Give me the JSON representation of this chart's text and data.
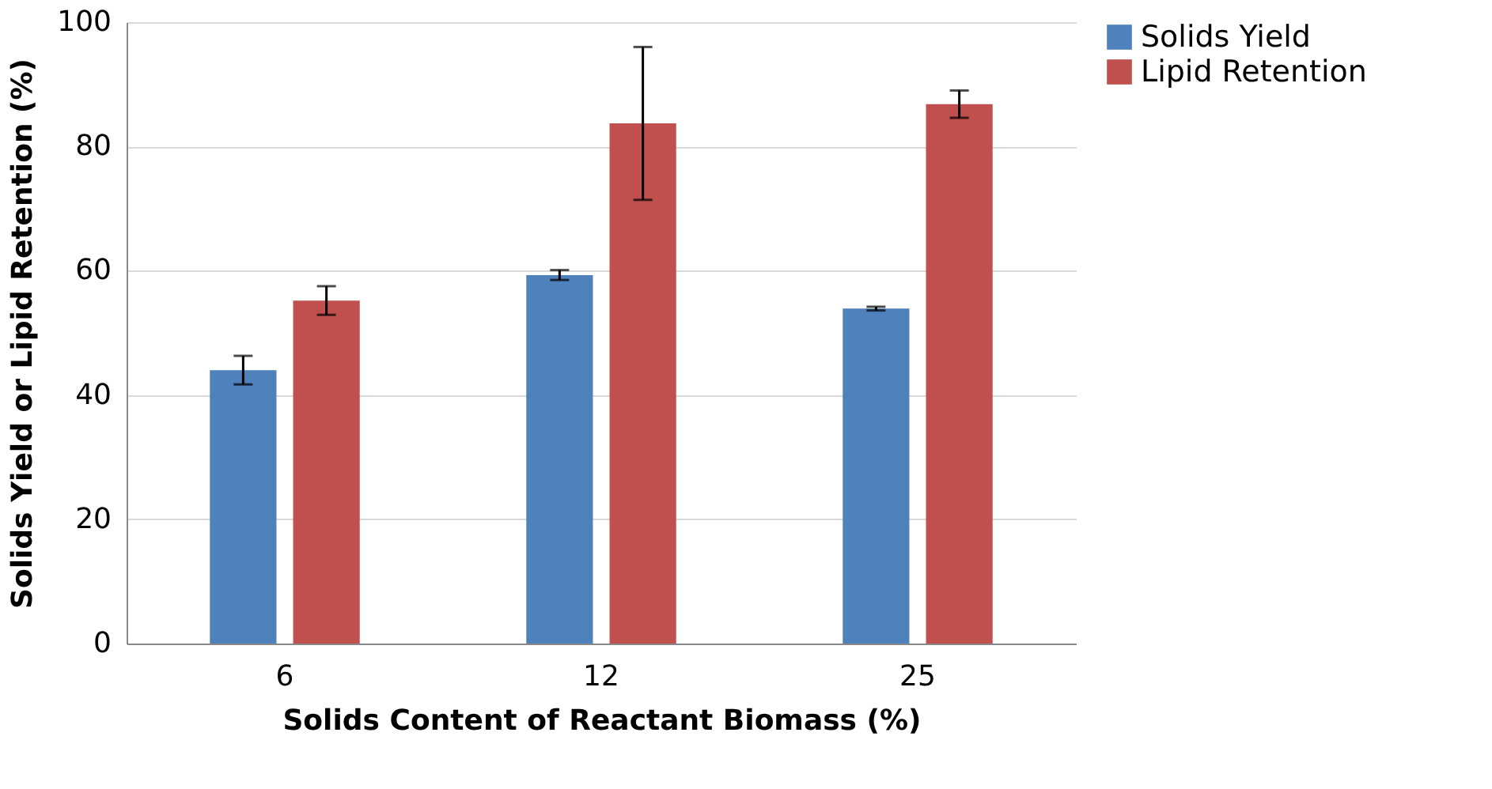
{
  "chart_data": {
    "type": "bar",
    "xlabel": "Solids Content of Reactant Biomass (%)",
    "ylabel": "Solids Yield or Lipid Retention (%)",
    "categories": [
      "6",
      "12",
      "25"
    ],
    "series": [
      {
        "name": "Solids Yield",
        "color": "#4f81bd",
        "values": [
          44.0,
          59.3,
          53.9
        ],
        "errors": [
          2.3,
          0.8,
          0.3
        ]
      },
      {
        "name": "Lipid Retention",
        "color": "#c0504d",
        "values": [
          55.2,
          83.7,
          86.8
        ],
        "errors": [
          2.3,
          12.3,
          2.2
        ]
      }
    ],
    "ylim": [
      0,
      100
    ],
    "yticks": [
      0,
      20,
      40,
      60,
      80,
      100
    ],
    "grid": "y",
    "legend": "right"
  }
}
